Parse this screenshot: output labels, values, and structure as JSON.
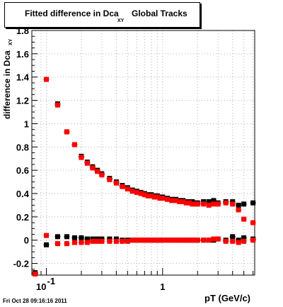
{
  "title": {
    "main": "Fitted difference in Dca",
    "subscript": "XY",
    "tail": "Global Tracks"
  },
  "ylabel": {
    "main": "difference in Dca",
    "subscript": "XY"
  },
  "xlabel": "pT (GeV/c)",
  "timestamp": "Fri Oct 28 09:16:16 2011",
  "colors": {
    "series_black": "#000000",
    "series_red": "#ff0000",
    "grid": "#b0b0b0"
  },
  "chart_data": {
    "type": "scatter",
    "x_scale": "log",
    "xlim": [
      0.075,
      6.2
    ],
    "ylim": [
      -0.3,
      1.8
    ],
    "grid": true,
    "yticks": [
      {
        "v": -0.2,
        "label": "-0.2"
      },
      {
        "v": 0,
        "label": "0"
      },
      {
        "v": 0.2,
        "label": "0.2"
      },
      {
        "v": 0.4,
        "label": "0.4"
      },
      {
        "v": 0.6,
        "label": "0.6"
      },
      {
        "v": 0.8,
        "label": "0.8"
      },
      {
        "v": 1.0,
        "label": "1"
      },
      {
        "v": 1.2,
        "label": "1.2"
      },
      {
        "v": 1.4,
        "label": "1.4"
      },
      {
        "v": 1.6,
        "label": "1.6"
      },
      {
        "v": 1.8,
        "label": "1.8"
      }
    ],
    "xticks": [
      {
        "v": 0.1,
        "label": "10",
        "sup": "-1"
      },
      {
        "v": 1.0,
        "label": "1",
        "sup": ""
      }
    ],
    "series": [
      {
        "color": "#000000",
        "x": [
          0.08,
          0.1,
          0.125,
          0.15,
          0.175,
          0.2,
          0.225,
          0.25,
          0.275,
          0.3,
          0.35,
          0.4,
          0.45,
          0.5,
          0.55,
          0.6,
          0.65,
          0.7,
          0.75,
          0.8,
          0.85,
          0.9,
          0.95,
          1.0,
          1.1,
          1.2,
          1.3,
          1.4,
          1.5,
          1.6,
          1.7,
          1.8,
          1.9,
          2.0,
          2.25,
          2.5,
          2.75,
          3.0,
          3.5,
          4.0,
          4.5,
          5.0,
          6.0
        ],
        "y": [
          -0.28,
          1.38,
          1.17,
          0.93,
          0.82,
          0.72,
          0.67,
          0.63,
          0.6,
          0.57,
          0.53,
          0.5,
          0.47,
          0.45,
          0.43,
          0.42,
          0.41,
          0.4,
          0.39,
          0.39,
          0.38,
          0.38,
          0.37,
          0.37,
          0.36,
          0.35,
          0.35,
          0.34,
          0.34,
          0.33,
          0.33,
          0.33,
          0.32,
          0.32,
          0.33,
          0.33,
          0.34,
          0.32,
          0.33,
          0.33,
          0.3,
          0.31,
          0.32
        ]
      },
      {
        "color": "#ff0000",
        "x": [
          0.08,
          0.1,
          0.125,
          0.15,
          0.175,
          0.2,
          0.225,
          0.25,
          0.275,
          0.3,
          0.35,
          0.4,
          0.45,
          0.5,
          0.55,
          0.6,
          0.65,
          0.7,
          0.75,
          0.8,
          0.85,
          0.9,
          0.95,
          1.0,
          1.1,
          1.2,
          1.3,
          1.4,
          1.5,
          1.6,
          1.7,
          1.8,
          1.9,
          2.0,
          2.25,
          2.5,
          2.75,
          3.0,
          3.5,
          4.0,
          4.5,
          5.0,
          6.0
        ],
        "y": [
          -0.29,
          1.38,
          1.16,
          0.93,
          0.82,
          0.71,
          0.66,
          0.62,
          0.59,
          0.56,
          0.52,
          0.49,
          0.46,
          0.44,
          0.42,
          0.41,
          0.4,
          0.39,
          0.38,
          0.38,
          0.37,
          0.37,
          0.36,
          0.36,
          0.35,
          0.34,
          0.34,
          0.33,
          0.33,
          0.32,
          0.32,
          0.31,
          0.31,
          0.31,
          0.31,
          0.3,
          0.31,
          0.31,
          0.32,
          0.31,
          0.26,
          0.18,
          0.15
        ]
      },
      {
        "color": "#000000",
        "x": [
          0.08,
          0.1,
          0.125,
          0.15,
          0.175,
          0.2,
          0.225,
          0.25,
          0.275,
          0.3,
          0.35,
          0.4,
          0.45,
          0.5,
          0.55,
          0.6,
          0.65,
          0.7,
          0.75,
          0.8,
          0.85,
          0.9,
          0.95,
          1.0,
          1.1,
          1.2,
          1.3,
          1.4,
          1.5,
          1.6,
          1.7,
          1.8,
          1.9,
          2.0,
          2.25,
          2.5,
          2.75,
          3.0,
          3.5,
          4.0,
          4.5,
          5.0,
          6.0
        ],
        "y": [
          -0.28,
          -0.04,
          0.03,
          0.03,
          0.02,
          0.02,
          0.01,
          0.01,
          0.01,
          0.01,
          0.01,
          0.01,
          0.0,
          0.0,
          0.0,
          0.0,
          0.0,
          0.0,
          0.0,
          0.0,
          0.0,
          0.0,
          0.0,
          0.0,
          0.0,
          0.0,
          0.0,
          0.0,
          0.0,
          0.0,
          0.0,
          0.0,
          0.0,
          0.0,
          0.0,
          0.0,
          0.0,
          0.01,
          0.0,
          0.03,
          0.0,
          0.02,
          0.01
        ]
      },
      {
        "color": "#ff0000",
        "x": [
          0.08,
          0.1,
          0.125,
          0.15,
          0.175,
          0.2,
          0.225,
          0.25,
          0.275,
          0.3,
          0.35,
          0.4,
          0.45,
          0.5,
          0.55,
          0.6,
          0.65,
          0.7,
          0.75,
          0.8,
          0.85,
          0.9,
          0.95,
          1.0,
          1.1,
          1.2,
          1.3,
          1.4,
          1.5,
          1.6,
          1.7,
          1.8,
          1.9,
          2.0,
          2.25,
          2.5,
          2.75,
          3.0,
          3.5,
          4.0,
          4.5,
          5.0,
          6.0
        ],
        "y": [
          -0.29,
          0.04,
          -0.03,
          -0.03,
          -0.02,
          -0.02,
          -0.02,
          -0.01,
          -0.01,
          -0.01,
          -0.01,
          -0.01,
          -0.01,
          -0.01,
          0.0,
          0.0,
          0.0,
          0.0,
          0.0,
          0.0,
          0.0,
          0.0,
          0.0,
          0.0,
          0.0,
          0.0,
          0.0,
          0.0,
          0.0,
          0.0,
          0.0,
          0.0,
          0.0,
          0.0,
          0.0,
          0.0,
          0.01,
          0.01,
          -0.01,
          -0.01,
          -0.02,
          -0.01,
          0.0
        ]
      }
    ]
  }
}
